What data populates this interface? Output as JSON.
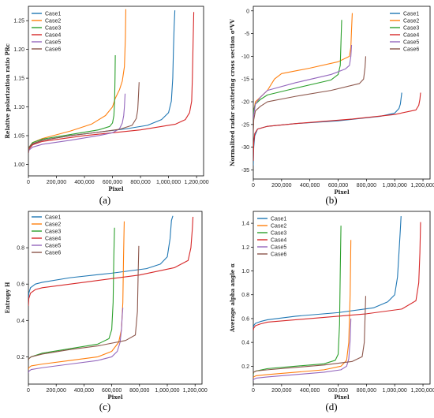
{
  "chart_data": [
    {
      "type": "line",
      "caption": "(a)",
      "xlabel": "Pixel",
      "ylabel": "Relative polarization ratio PRc",
      "xlim": [
        0,
        1250000
      ],
      "ylim": [
        0.98,
        1.275
      ],
      "xticks": [
        0,
        200000,
        400000,
        600000,
        800000,
        1000000,
        1200000
      ],
      "xtick_labels": [
        "0",
        "200,000",
        "400,000",
        "600,000",
        "800,000",
        "1,000,000",
        "1,200,000"
      ],
      "yticks": [
        1.0,
        1.05,
        1.1,
        1.15,
        1.2,
        1.25
      ],
      "ytick_labels": [
        "1.00",
        "1.05",
        "1.10",
        "1.15",
        "1.20",
        "1.25"
      ],
      "legend": "top-left",
      "series": [
        {
          "name": "Case1",
          "color": "#1f77b4",
          "x": [
            0,
            5000,
            30000,
            100000,
            300000,
            500000,
            700000,
            850000,
            950000,
            1000000,
            1020000,
            1030000,
            1035000,
            1040000,
            1045000
          ],
          "y": [
            1.02,
            1.028,
            1.035,
            1.042,
            1.05,
            1.056,
            1.062,
            1.068,
            1.078,
            1.09,
            1.11,
            1.15,
            1.2,
            1.24,
            1.268
          ]
        },
        {
          "name": "Case2",
          "color": "#ff7f0e",
          "x": [
            0,
            5000,
            30000,
            100000,
            300000,
            450000,
            550000,
            600000,
            620000,
            650000,
            670000,
            685000,
            692000,
            695000
          ],
          "y": [
            1.02,
            1.03,
            1.038,
            1.045,
            1.058,
            1.07,
            1.085,
            1.1,
            1.115,
            1.13,
            1.145,
            1.17,
            1.22,
            1.27
          ]
        },
        {
          "name": "Case3",
          "color": "#2ca02c",
          "x": [
            0,
            5000,
            30000,
            100000,
            300000,
            500000,
            580000,
            600000,
            610000,
            615000,
            618000,
            620000
          ],
          "y": [
            1.02,
            1.03,
            1.038,
            1.044,
            1.052,
            1.06,
            1.066,
            1.072,
            1.085,
            1.11,
            1.15,
            1.19
          ]
        },
        {
          "name": "Case4",
          "color": "#d62728",
          "x": [
            0,
            5000,
            30000,
            100000,
            400000,
            800000,
            1050000,
            1120000,
            1150000,
            1165000,
            1170000,
            1175000,
            1180000
          ],
          "y": [
            1.02,
            1.027,
            1.034,
            1.04,
            1.05,
            1.06,
            1.07,
            1.078,
            1.09,
            1.11,
            1.15,
            1.21,
            1.265
          ]
        },
        {
          "name": "Case5",
          "color": "#9467bd",
          "x": [
            0,
            5000,
            30000,
            100000,
            300000,
            500000,
            600000,
            650000,
            670000,
            680000,
            685000,
            690000
          ],
          "y": [
            1.02,
            1.025,
            1.03,
            1.035,
            1.042,
            1.05,
            1.055,
            1.062,
            1.072,
            1.085,
            1.1,
            1.123
          ]
        },
        {
          "name": "Case6",
          "color": "#8c564b",
          "x": [
            0,
            5000,
            30000,
            100000,
            300000,
            500000,
            650000,
            740000,
            770000,
            780000,
            785000,
            790000
          ],
          "y": [
            1.02,
            1.03,
            1.036,
            1.042,
            1.05,
            1.056,
            1.061,
            1.068,
            1.08,
            1.095,
            1.118,
            1.143
          ]
        }
      ]
    },
    {
      "type": "line",
      "caption": "(b)",
      "xlabel": "Pixel",
      "ylabel": "Normalized radar scattering cross section σ⁰VV",
      "xlim": [
        0,
        1250000
      ],
      "ylim": [
        -37,
        1
      ],
      "xticks": [
        0,
        200000,
        400000,
        600000,
        800000,
        1000000,
        1200000
      ],
      "xtick_labels": [
        "0",
        "200,000",
        "400,000",
        "600,000",
        "800,000",
        "1,000,000",
        "1,200,000"
      ],
      "yticks": [
        -35,
        -30,
        -25,
        -20,
        -15,
        -10,
        -5,
        0
      ],
      "ytick_labels": [
        "-35",
        "-30",
        "-25",
        "-20",
        "-15",
        "-10",
        "-5",
        "0"
      ],
      "legend": "top-right",
      "series": [
        {
          "name": "Case1",
          "color": "#1f77b4",
          "x": [
            0,
            3000,
            10000,
            30000,
            100000,
            300000,
            600000,
            900000,
            1000000,
            1030000,
            1040000,
            1045000,
            1050000
          ],
          "y": [
            -34,
            -30,
            -27.5,
            -26,
            -25.4,
            -24.8,
            -24.2,
            -23.2,
            -22.5,
            -21.5,
            -20.5,
            -19.3,
            -18
          ]
        },
        {
          "name": "Case2",
          "color": "#ff7f0e",
          "x": [
            0,
            3000,
            15000,
            50000,
            100000,
            150000,
            200000,
            400000,
            600000,
            680000,
            690000,
            695000,
            700000
          ],
          "y": [
            -26,
            -22,
            -20,
            -19,
            -17.5,
            -15,
            -13.8,
            -12.6,
            -11.2,
            -10,
            -8,
            -4,
            -0.5
          ]
        },
        {
          "name": "Case3",
          "color": "#2ca02c",
          "x": [
            0,
            3000,
            15000,
            50000,
            100000,
            300000,
            550000,
            600000,
            615000,
            620000,
            625000
          ],
          "y": [
            -25,
            -22,
            -20.5,
            -19.5,
            -18.5,
            -17,
            -15.2,
            -14,
            -12,
            -7,
            -2
          ]
        },
        {
          "name": "Case4",
          "color": "#d62728",
          "x": [
            0,
            3000,
            10000,
            30000,
            100000,
            300000,
            700000,
            1000000,
            1150000,
            1170000,
            1178000,
            1183000
          ],
          "y": [
            -33,
            -29,
            -27,
            -26,
            -25.4,
            -24.8,
            -23.8,
            -22.8,
            -21.8,
            -20.8,
            -19.5,
            -18
          ]
        },
        {
          "name": "Case5",
          "color": "#9467bd",
          "x": [
            0,
            3000,
            15000,
            50000,
            100000,
            300000,
            550000,
            650000,
            680000,
            690000,
            695000
          ],
          "y": [
            -26,
            -23,
            -20.5,
            -19,
            -17.5,
            -15.8,
            -14,
            -12.8,
            -12,
            -10,
            -7.5
          ]
        },
        {
          "name": "Case6",
          "color": "#8c564b",
          "x": [
            0,
            3000,
            15000,
            50000,
            100000,
            300000,
            550000,
            750000,
            780000,
            790000,
            795000
          ],
          "y": [
            -27,
            -24,
            -22,
            -21,
            -20,
            -18.8,
            -17.5,
            -16,
            -15,
            -12.5,
            -10
          ]
        }
      ]
    },
    {
      "type": "line",
      "caption": "(c)",
      "xlabel": "Pixel",
      "ylabel": "Entropy H",
      "xlim": [
        0,
        1250000
      ],
      "ylim": [
        0.05,
        1.0
      ],
      "xticks": [
        0,
        200000,
        400000,
        600000,
        800000,
        1000000,
        1200000
      ],
      "xtick_labels": [
        "0",
        "200,000",
        "400,000",
        "600,000",
        "800,000",
        "1,000,000",
        "1,200,000"
      ],
      "yticks": [
        0.2,
        0.4,
        0.6,
        0.8
      ],
      "ytick_labels": [
        "0.2",
        "0.4",
        "0.6",
        "0.8"
      ],
      "legend": "top-left",
      "series": [
        {
          "name": "Case1",
          "color": "#1f77b4",
          "x": [
            0,
            3000,
            15000,
            50000,
            100000,
            300000,
            600000,
            850000,
            950000,
            1000000,
            1020000,
            1030000,
            1040000
          ],
          "y": [
            0.5,
            0.55,
            0.58,
            0.6,
            0.61,
            0.635,
            0.66,
            0.685,
            0.71,
            0.75,
            0.85,
            0.95,
            0.975
          ]
        },
        {
          "name": "Case2",
          "color": "#ff7f0e",
          "x": [
            0,
            3000,
            20000,
            100000,
            300000,
            500000,
            600000,
            650000,
            670000,
            680000,
            685000,
            690000
          ],
          "y": [
            0.13,
            0.14,
            0.15,
            0.16,
            0.18,
            0.2,
            0.23,
            0.28,
            0.35,
            0.5,
            0.75,
            0.945
          ]
        },
        {
          "name": "Case3",
          "color": "#2ca02c",
          "x": [
            0,
            3000,
            20000,
            100000,
            300000,
            500000,
            580000,
            600000,
            610000,
            615000,
            620000
          ],
          "y": [
            0.18,
            0.19,
            0.2,
            0.22,
            0.245,
            0.27,
            0.3,
            0.35,
            0.5,
            0.75,
            0.91
          ]
        },
        {
          "name": "Case4",
          "color": "#d62728",
          "x": [
            0,
            3000,
            15000,
            50000,
            100000,
            400000,
            800000,
            1050000,
            1150000,
            1170000,
            1180000,
            1185000
          ],
          "y": [
            0.48,
            0.52,
            0.55,
            0.57,
            0.58,
            0.61,
            0.65,
            0.69,
            0.73,
            0.8,
            0.9,
            0.97
          ]
        },
        {
          "name": "Case5",
          "color": "#9467bd",
          "x": [
            0,
            3000,
            20000,
            100000,
            300000,
            500000,
            600000,
            640000,
            660000,
            670000,
            675000,
            680000
          ],
          "y": [
            0.11,
            0.12,
            0.13,
            0.14,
            0.16,
            0.18,
            0.2,
            0.23,
            0.28,
            0.35,
            0.42,
            0.47
          ]
        },
        {
          "name": "Case6",
          "color": "#8c564b",
          "x": [
            0,
            3000,
            20000,
            100000,
            300000,
            500000,
            700000,
            770000,
            785000,
            790000,
            795000
          ],
          "y": [
            0.18,
            0.19,
            0.2,
            0.215,
            0.24,
            0.26,
            0.29,
            0.32,
            0.45,
            0.65,
            0.81
          ]
        }
      ]
    },
    {
      "type": "line",
      "caption": "(d)",
      "xlabel": "Pixel",
      "ylabel": "Average alpha angle α",
      "xlim": [
        0,
        1250000
      ],
      "ylim": [
        0.05,
        1.5
      ],
      "xticks": [
        0,
        200000,
        400000,
        600000,
        800000,
        1000000,
        1200000
      ],
      "xtick_labels": [
        "0",
        "200,000",
        "400,000",
        "600,000",
        "800,000",
        "1,000,000",
        "1,200,000"
      ],
      "yticks": [
        0.2,
        0.4,
        0.6,
        0.8,
        1.0,
        1.2,
        1.4
      ],
      "ytick_labels": [
        "0.2",
        "0.4",
        "0.6",
        "0.8",
        "1.0",
        "1.2",
        "1.4"
      ],
      "legend": "top-left",
      "series": [
        {
          "name": "Case1",
          "color": "#1f77b4",
          "x": [
            0,
            3000,
            15000,
            50000,
            100000,
            300000,
            600000,
            850000,
            950000,
            1000000,
            1020000,
            1030000,
            1040000,
            1045000
          ],
          "y": [
            0.52,
            0.54,
            0.56,
            0.575,
            0.59,
            0.62,
            0.65,
            0.69,
            0.74,
            0.8,
            0.95,
            1.15,
            1.35,
            1.46
          ]
        },
        {
          "name": "Case2",
          "color": "#ff7f0e",
          "x": [
            0,
            3000,
            20000,
            100000,
            300000,
            500000,
            620000,
            660000,
            675000,
            685000,
            690000
          ],
          "y": [
            0.1,
            0.11,
            0.12,
            0.13,
            0.15,
            0.17,
            0.2,
            0.25,
            0.4,
            0.8,
            1.26
          ]
        },
        {
          "name": "Case3",
          "color": "#2ca02c",
          "x": [
            0,
            3000,
            20000,
            100000,
            300000,
            500000,
            580000,
            600000,
            610000,
            615000,
            620000
          ],
          "y": [
            0.13,
            0.15,
            0.16,
            0.18,
            0.2,
            0.22,
            0.25,
            0.3,
            0.55,
            1.0,
            1.38
          ]
        },
        {
          "name": "Case4",
          "color": "#d62728",
          "x": [
            0,
            3000,
            15000,
            50000,
            100000,
            400000,
            800000,
            1050000,
            1150000,
            1170000,
            1178000,
            1183000
          ],
          "y": [
            0.5,
            0.52,
            0.54,
            0.555,
            0.57,
            0.6,
            0.64,
            0.68,
            0.75,
            0.9,
            1.15,
            1.41
          ]
        },
        {
          "name": "Case5",
          "color": "#9467bd",
          "x": [
            0,
            3000,
            20000,
            100000,
            300000,
            500000,
            620000,
            660000,
            675000,
            685000,
            690000
          ],
          "y": [
            0.08,
            0.09,
            0.1,
            0.11,
            0.13,
            0.15,
            0.17,
            0.2,
            0.26,
            0.42,
            0.6
          ]
        },
        {
          "name": "Case6",
          "color": "#8c564b",
          "x": [
            0,
            3000,
            20000,
            100000,
            300000,
            500000,
            700000,
            770000,
            785000,
            790000,
            795000
          ],
          "y": [
            0.14,
            0.15,
            0.16,
            0.17,
            0.19,
            0.21,
            0.24,
            0.28,
            0.4,
            0.6,
            0.79
          ]
        }
      ]
    }
  ]
}
